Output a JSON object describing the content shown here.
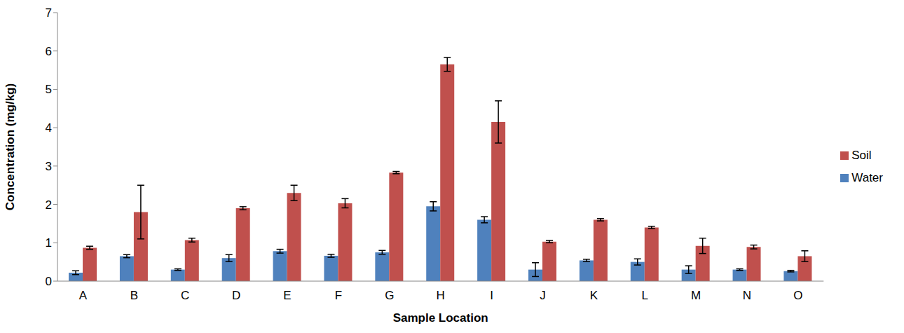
{
  "chart_data": {
    "type": "bar",
    "x_label": "Sample Location",
    "y_label": "Concentration (mg/kg)",
    "categories": [
      "A",
      "B",
      "C",
      "D",
      "E",
      "F",
      "G",
      "H",
      "I",
      "J",
      "K",
      "L",
      "M",
      "N",
      "O"
    ],
    "series": [
      {
        "name": "Water",
        "color": "#4f81bd",
        "values": [
          0.22,
          0.65,
          0.3,
          0.6,
          0.78,
          0.66,
          0.75,
          1.95,
          1.6,
          0.3,
          0.54,
          0.5,
          0.3,
          0.3,
          0.26
        ],
        "errors": [
          0.05,
          0.04,
          0.02,
          0.09,
          0.05,
          0.04,
          0.05,
          0.12,
          0.08,
          0.18,
          0.03,
          0.08,
          0.1,
          0.02,
          0.02
        ]
      },
      {
        "name": "Soil",
        "color": "#c0504d",
        "values": [
          0.87,
          1.8,
          1.07,
          1.9,
          2.3,
          2.03,
          2.83,
          5.65,
          4.15,
          1.03,
          1.6,
          1.4,
          0.92,
          0.89,
          0.65
        ],
        "errors": [
          0.04,
          0.7,
          0.05,
          0.04,
          0.2,
          0.12,
          0.03,
          0.18,
          0.55,
          0.03,
          0.03,
          0.03,
          0.2,
          0.05,
          0.14
        ]
      }
    ],
    "ylim": [
      0,
      7
    ],
    "yticks": [
      0,
      1,
      2,
      3,
      4,
      5,
      6,
      7
    ],
    "grid": false,
    "legend": "right"
  }
}
